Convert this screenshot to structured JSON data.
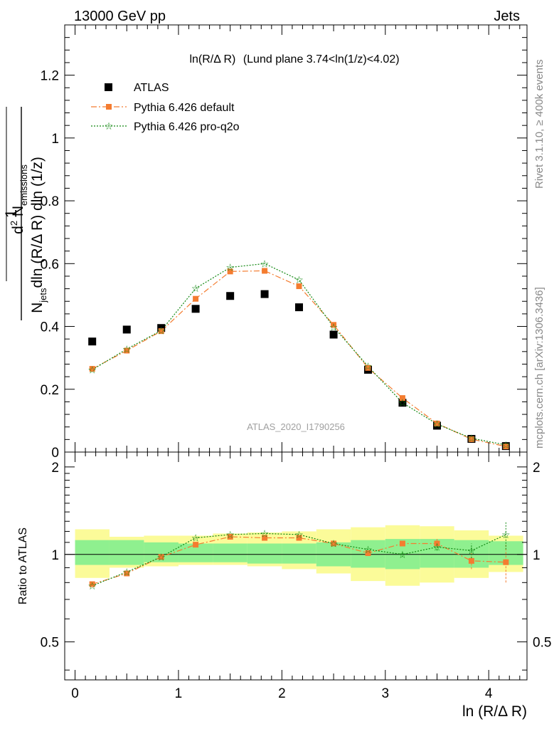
{
  "header": {
    "left_title": "13000 GeV pp",
    "right_title": "Jets"
  },
  "side_labels": {
    "rivet": "Rivet 3.1.10, ≥ 400k events",
    "source": "mcplots.cern.ch [arXiv:1306.3436]"
  },
  "colors": {
    "atlas": "#000000",
    "pythia_default": "#f47c30",
    "pythia_pro_q2o": "#118811",
    "band_inner": "#8ff08f",
    "band_outer": "#fbfb99",
    "watermark": "#a0a0a0"
  },
  "chart_data": [
    {
      "type": "scatter",
      "panel": "main",
      "title_main": "ln(R/Δ R)",
      "title_suffix": "(Lund plane 3.74<ln(1/z)<4.02)",
      "watermark": "ATLAS_2020_I1790256",
      "ylabel_parts": {
        "one": "1",
        "njets": "N",
        "njets_sub": "jets",
        "dln": "dln (R/Δ R) dln (1/z)",
        "numer": "d",
        "numer_sup": "2",
        "numer_rest": " N",
        "numer_sub": "emissions",
        "numer_rest2": "dln (R/Δ R) dln (1/z)"
      },
      "ylim": [
        0,
        1.36
      ],
      "xlim": [
        -0.1,
        4.37
      ],
      "yticks": [
        0,
        0.2,
        0.4,
        0.6,
        0.8,
        1,
        1.2
      ],
      "ytick_labels": [
        "0",
        "0.2",
        "0.4",
        "0.6",
        "0.8",
        "1",
        "1.2"
      ],
      "x": [
        0.166,
        0.5,
        0.833,
        1.166,
        1.5,
        1.833,
        2.166,
        2.5,
        2.833,
        3.166,
        3.5,
        3.833,
        4.166
      ],
      "series": [
        {
          "name": "ATLAS",
          "key": "atlas",
          "values": [
            0.352,
            0.39,
            0.395,
            0.456,
            0.497,
            0.503,
            0.461,
            0.374,
            0.262,
            0.157,
            0.084,
            0.042,
            0.019
          ]
        },
        {
          "name": "Pythia 6.426 default",
          "key": "pythia_default",
          "values": [
            0.265,
            0.323,
            0.385,
            0.488,
            0.575,
            0.577,
            0.528,
            0.405,
            0.268,
            0.172,
            0.091,
            0.041,
            0.018
          ]
        },
        {
          "name": "Pythia 6.426 pro-q2o",
          "key": "pythia_pro_q2o",
          "values": [
            0.262,
            0.328,
            0.387,
            0.521,
            0.588,
            0.6,
            0.548,
            0.398,
            0.273,
            0.157,
            0.089,
            0.044,
            0.023
          ]
        }
      ],
      "legend": [
        "ATLAS",
        "Pythia 6.426 default",
        "Pythia 6.426 pro-q2o"
      ]
    },
    {
      "type": "line",
      "panel": "ratio",
      "ylabel": "Ratio to ATLAS",
      "xlabel": "ln (R/Δ R)",
      "ylim": [
        0.37,
        2.25
      ],
      "xlim": [
        -0.1,
        4.37
      ],
      "yticks": [
        0.5,
        1,
        2
      ],
      "ytick_labels": [
        "0.5",
        "1",
        "2"
      ],
      "xticks": [
        0,
        1,
        2,
        3,
        4
      ],
      "xtick_labels": [
        "0",
        "1",
        "2",
        "3",
        "4"
      ],
      "bin_edges": [
        0,
        0.333,
        0.666,
        1.0,
        1.333,
        1.666,
        2.0,
        2.333,
        2.666,
        3.0,
        3.333,
        3.666,
        4.0,
        4.333
      ],
      "band_inner": [
        [
          0.92,
          1.12
        ],
        [
          0.92,
          1.12
        ],
        [
          0.94,
          1.1
        ],
        [
          0.94,
          1.09
        ],
        [
          0.94,
          1.09
        ],
        [
          0.93,
          1.09
        ],
        [
          0.93,
          1.09
        ],
        [
          0.91,
          1.1
        ],
        [
          0.9,
          1.12
        ],
        [
          0.89,
          1.13
        ],
        [
          0.9,
          1.13
        ],
        [
          0.9,
          1.12
        ],
        [
          0.92,
          1.11
        ]
      ],
      "band_outer": [
        [
          0.83,
          1.22
        ],
        [
          0.9,
          1.15
        ],
        [
          0.91,
          1.16
        ],
        [
          0.92,
          1.16
        ],
        [
          0.92,
          1.18
        ],
        [
          0.91,
          1.19
        ],
        [
          0.89,
          1.2
        ],
        [
          0.86,
          1.22
        ],
        [
          0.81,
          1.24
        ],
        [
          0.78,
          1.26
        ],
        [
          0.8,
          1.25
        ],
        [
          0.83,
          1.21
        ],
        [
          0.87,
          1.16
        ]
      ],
      "series": [
        {
          "name": "Pythia 6.426 default",
          "key": "pythia_default",
          "values": [
            0.79,
            0.86,
            0.98,
            1.08,
            1.15,
            1.14,
            1.14,
            1.09,
            1.01,
            1.09,
            1.09,
            0.95,
            0.94
          ],
          "errors": [
            0.01,
            0.01,
            0.01,
            0.01,
            0.01,
            0.01,
            0.01,
            0.01,
            0.01,
            0.02,
            0.04,
            0.06,
            0.14
          ]
        },
        {
          "name": "Pythia 6.426 pro-q2o",
          "key": "pythia_pro_q2o",
          "values": [
            0.78,
            0.87,
            0.98,
            1.14,
            1.17,
            1.18,
            1.17,
            1.09,
            1.04,
            1.0,
            1.06,
            1.03,
            1.17
          ],
          "errors": [
            0.01,
            0.01,
            0.01,
            0.01,
            0.01,
            0.01,
            0.01,
            0.01,
            0.01,
            0.02,
            0.03,
            0.06,
            0.13
          ]
        }
      ]
    }
  ]
}
